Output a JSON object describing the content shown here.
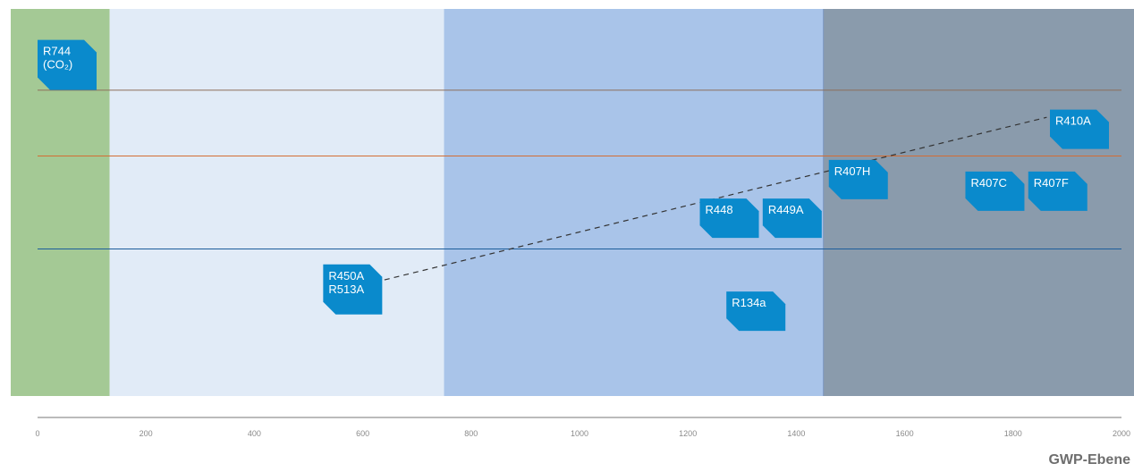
{
  "chart_data": {
    "type": "scatter",
    "xlabel": "GWP-Ebene",
    "xlim": [
      0,
      2000
    ],
    "x_ticks": [
      0,
      200,
      400,
      600,
      800,
      1000,
      1200,
      1400,
      1600,
      1800,
      2000
    ],
    "zones": [
      {
        "from": -50,
        "to": 133,
        "color": "#a4c995"
      },
      {
        "from": 133,
        "to": 750,
        "color": "#e1ebf7"
      },
      {
        "from": 750,
        "to": 1450,
        "color": "#a9c4e9"
      },
      {
        "from": 1450,
        "to": 2030,
        "color": "#8a9bac"
      }
    ],
    "reference_lines": [
      {
        "level": 0.79,
        "color": "#8d6e5a"
      },
      {
        "level": 0.62,
        "color": "#d36d34"
      },
      {
        "level": 0.38,
        "color": "#1c5d9b"
      }
    ],
    "points": [
      {
        "name": "R744",
        "label": [
          "R744",
          "(CO₂)"
        ],
        "x": 0,
        "level": 0.92
      },
      {
        "name": "R410A",
        "label": [
          "R410A"
        ],
        "x": 1868,
        "level": 0.74
      },
      {
        "name": "R407H",
        "label": [
          "R407H"
        ],
        "x": 1460,
        "level": 0.61
      },
      {
        "name": "R407C",
        "label": [
          "R407C"
        ],
        "x": 1712,
        "level": 0.58
      },
      {
        "name": "R407F",
        "label": [
          "R407F"
        ],
        "x": 1828,
        "level": 0.58
      },
      {
        "name": "R448",
        "label": [
          "R448"
        ],
        "x": 1222,
        "level": 0.51
      },
      {
        "name": "R449A",
        "label": [
          "R449A"
        ],
        "x": 1338,
        "level": 0.51
      },
      {
        "name": "R450A-R513A",
        "label": [
          "R450A",
          "R513A"
        ],
        "x": 527,
        "level": 0.34
      },
      {
        "name": "R134a",
        "label": [
          "R134a"
        ],
        "x": 1271,
        "level": 0.27
      }
    ],
    "trend_line": {
      "from": {
        "x": 640,
        "level": 0.3
      },
      "to": {
        "x": 1862,
        "level": 0.72
      }
    },
    "tag_color": "#0a8acc"
  }
}
